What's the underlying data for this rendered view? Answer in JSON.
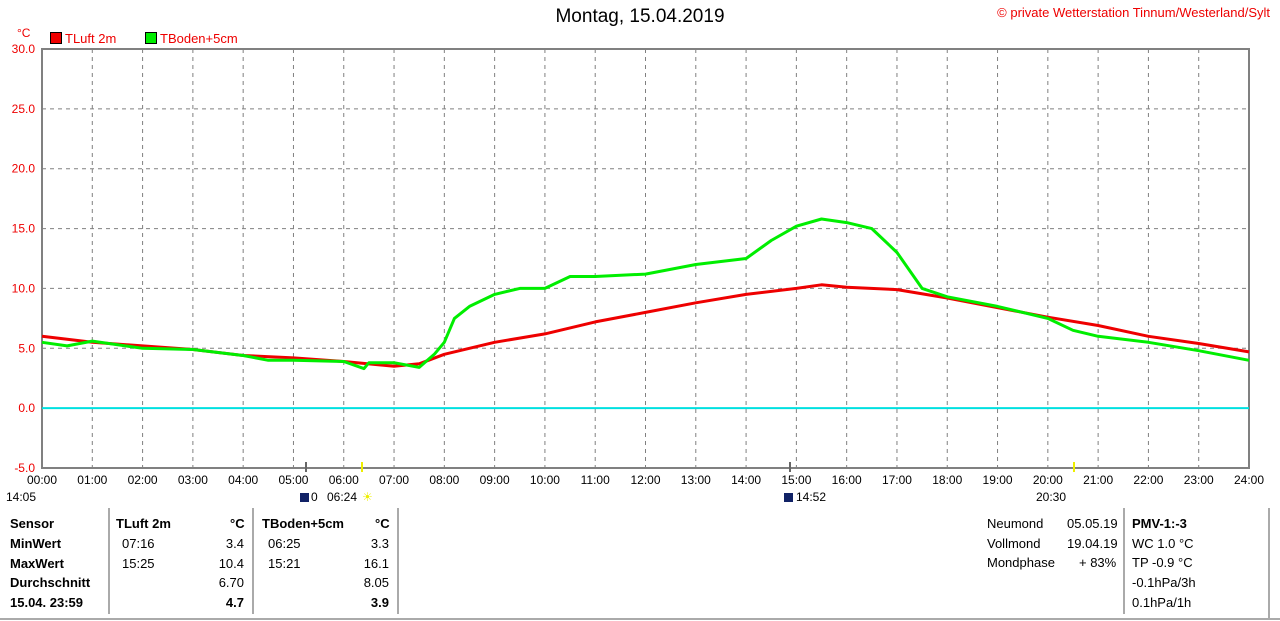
{
  "title": "Montag, 15.04.2019",
  "copyright": "© private Wetterstation Tinnum/Westerland/Sylt",
  "unit_label": "°C",
  "chart_data": {
    "type": "line",
    "title": "Montag, 15.04.2019",
    "ylabel": "°C",
    "ylim": [
      -5,
      30
    ],
    "yticks": [
      "30.0",
      "25.0",
      "20.0",
      "15.0",
      "10.0",
      "5.0",
      "0.0",
      "-5.0"
    ],
    "xlim": [
      0,
      24
    ],
    "xticks": [
      "00:00",
      "01:00",
      "02:00",
      "03:00",
      "04:00",
      "05:00",
      "06:00",
      "07:00",
      "08:00",
      "09:00",
      "10:00",
      "11:00",
      "12:00",
      "13:00",
      "14:00",
      "15:00",
      "16:00",
      "17:00",
      "18:00",
      "19:00",
      "20:00",
      "21:00",
      "22:00",
      "23:00",
      "24:00"
    ],
    "grid": true,
    "legend_position": "top-left",
    "reference_line": {
      "y": 0,
      "color": "#00e0e0"
    },
    "series": [
      {
        "name": "TLuft 2m",
        "color": "#ee0000",
        "x": [
          0,
          1,
          2,
          3,
          4,
          5,
          6,
          7,
          7.5,
          8,
          9,
          10,
          11,
          12,
          13,
          14,
          15,
          15.5,
          16,
          17,
          18,
          19,
          20,
          21,
          22,
          23,
          24
        ],
        "y": [
          6.0,
          5.5,
          5.2,
          4.9,
          4.4,
          4.2,
          3.9,
          3.5,
          3.7,
          4.5,
          5.5,
          6.2,
          7.2,
          8.0,
          8.8,
          9.5,
          10.0,
          10.3,
          10.1,
          9.9,
          9.2,
          8.4,
          7.6,
          6.9,
          6.0,
          5.4,
          4.7
        ]
      },
      {
        "name": "TBoden+5cm",
        "color": "#00ee00",
        "x": [
          0,
          0.5,
          1,
          2,
          3,
          4,
          4.5,
          5,
          6,
          6.4,
          6.5,
          7,
          7.5,
          7.8,
          8,
          8.2,
          8.5,
          9,
          9.5,
          10,
          10.5,
          11,
          12,
          13,
          14,
          14.5,
          15,
          15.5,
          16,
          16.5,
          17,
          17.5,
          18,
          19,
          20,
          20.5,
          21,
          22,
          23,
          24
        ],
        "y": [
          5.5,
          5.2,
          5.6,
          5.0,
          4.9,
          4.4,
          4.0,
          4.0,
          3.9,
          3.3,
          3.8,
          3.8,
          3.4,
          4.5,
          5.5,
          7.5,
          8.5,
          9.5,
          10.0,
          10.0,
          11.0,
          11.0,
          11.2,
          12.0,
          12.5,
          14.0,
          15.2,
          15.8,
          15.5,
          15.0,
          13.0,
          10.0,
          9.3,
          8.5,
          7.5,
          6.5,
          6.0,
          5.5,
          4.8,
          4.0
        ]
      }
    ]
  },
  "astro": {
    "moonset": "14:05",
    "sunrise_marker": "0",
    "sunrise": "06:24",
    "moon_mark": "14:52",
    "sunset": "20:30"
  },
  "table": {
    "headers": [
      "Sensor",
      "TLuft 2m",
      "°C",
      "TBoden+5cm",
      "°C"
    ],
    "rows": [
      {
        "label": "MinWert",
        "t1": "07:16",
        "v1": "3.4",
        "t2": "06:25",
        "v2": "3.3"
      },
      {
        "label": "MaxWert",
        "t1": "15:25",
        "v1": "10.4",
        "t2": "15:21",
        "v2": "16.1"
      },
      {
        "label": "Durchschnitt",
        "t1": "",
        "v1": "6.70",
        "t2": "",
        "v2": "8.05"
      },
      {
        "label": "15.04. 23:59",
        "t1": "",
        "v1": "4.7",
        "t2": "",
        "v2": "3.9"
      }
    ]
  },
  "moon": [
    {
      "label": "Neumond",
      "value": "05.05.19"
    },
    {
      "label": "Vollmond",
      "value": "19.04.19"
    },
    {
      "label": "Mondphase",
      "value": "+ 83%"
    }
  ],
  "extra": {
    "pmv": "PMV-1:-3",
    "wc": "WC 1.0 °C",
    "tp": "TP -0.9 °C",
    "p3": "-0.1hPa/3h",
    "p1": "0.1hPa/1h"
  }
}
